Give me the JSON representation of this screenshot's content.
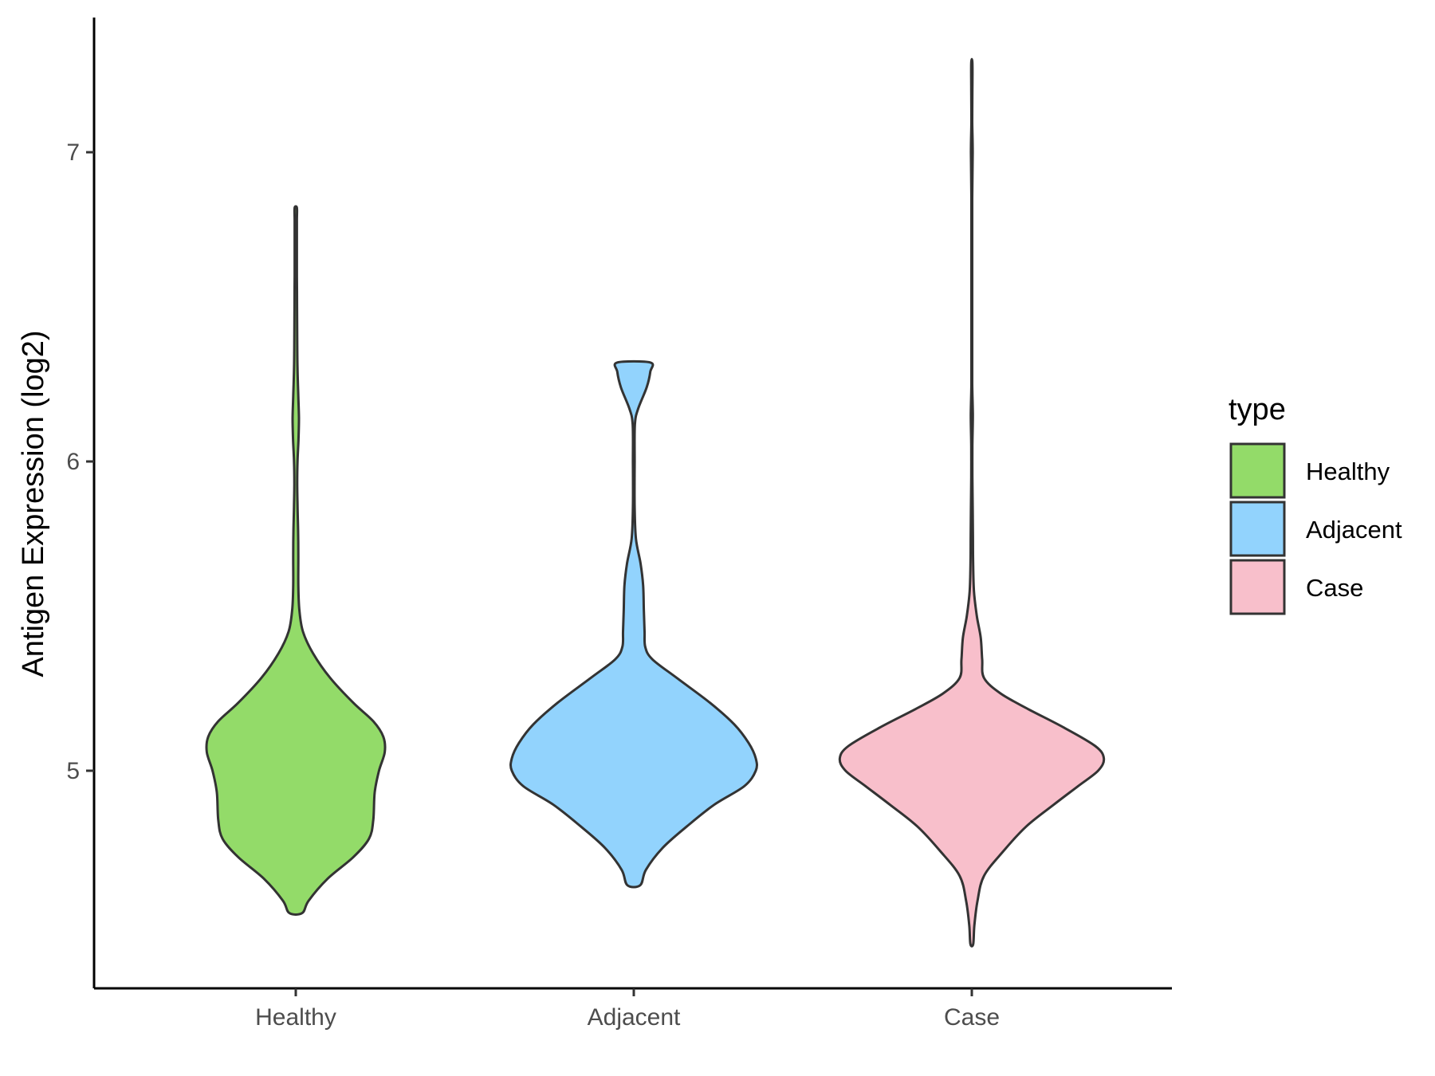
{
  "chart_data": {
    "type": "violin",
    "title": "",
    "xlabel": "",
    "ylabel": "Antigen Expression (log2)",
    "categories": [
      "Healthy",
      "Adjacent",
      "Case"
    ],
    "ylim": [
      4.3,
      7.43
    ],
    "yticks": [
      5,
      6,
      7
    ],
    "grid": false,
    "legend": {
      "title": "type",
      "position": "right",
      "entries": [
        "Healthy",
        "Adjacent",
        "Case"
      ]
    },
    "colors": {
      "Healthy": "#93DB69",
      "Adjacent": "#92D3FD",
      "Case": "#F8BFCB",
      "outline": "#333333"
    },
    "series": [
      {
        "name": "Healthy",
        "min": 4.54,
        "max": 6.82,
        "profile": [
          [
            4.54,
            0.045
          ],
          [
            4.58,
            0.09
          ],
          [
            4.65,
            0.22
          ],
          [
            4.72,
            0.4
          ],
          [
            4.78,
            0.51
          ],
          [
            4.84,
            0.54
          ],
          [
            4.93,
            0.55
          ],
          [
            5.0,
            0.58
          ],
          [
            5.06,
            0.62
          ],
          [
            5.11,
            0.61
          ],
          [
            5.16,
            0.54
          ],
          [
            5.22,
            0.4
          ],
          [
            5.3,
            0.24
          ],
          [
            5.38,
            0.12
          ],
          [
            5.45,
            0.05
          ],
          [
            5.52,
            0.025
          ],
          [
            5.6,
            0.018
          ],
          [
            5.7,
            0.018
          ],
          [
            5.78,
            0.016
          ],
          [
            5.86,
            0.012
          ],
          [
            5.93,
            0.01
          ],
          [
            6.0,
            0.012
          ],
          [
            6.07,
            0.019
          ],
          [
            6.14,
            0.022
          ],
          [
            6.21,
            0.018
          ],
          [
            6.3,
            0.012
          ],
          [
            6.4,
            0.01
          ],
          [
            6.5,
            0.009
          ],
          [
            6.6,
            0.008
          ],
          [
            6.7,
            0.008
          ],
          [
            6.78,
            0.008
          ],
          [
            6.82,
            0.008
          ]
        ]
      },
      {
        "name": "Adjacent",
        "min": 4.63,
        "max": 6.32,
        "profile": [
          [
            4.63,
            0.045
          ],
          [
            4.68,
            0.085
          ],
          [
            4.75,
            0.2
          ],
          [
            4.82,
            0.37
          ],
          [
            4.89,
            0.56
          ],
          [
            4.95,
            0.77
          ],
          [
            5.0,
            0.85
          ],
          [
            5.04,
            0.85
          ],
          [
            5.09,
            0.8
          ],
          [
            5.15,
            0.7
          ],
          [
            5.22,
            0.53
          ],
          [
            5.3,
            0.3
          ],
          [
            5.36,
            0.13
          ],
          [
            5.4,
            0.08
          ],
          [
            5.45,
            0.075
          ],
          [
            5.52,
            0.07
          ],
          [
            5.6,
            0.065
          ],
          [
            5.67,
            0.047
          ],
          [
            5.75,
            0.015
          ],
          [
            5.85,
            0.006
          ],
          [
            6.0,
            0.006
          ],
          [
            6.12,
            0.008
          ],
          [
            6.17,
            0.03
          ],
          [
            6.24,
            0.09
          ],
          [
            6.29,
            0.115
          ],
          [
            6.32,
            0.115
          ]
        ]
      },
      {
        "name": "Case",
        "min": 4.44,
        "max": 7.29,
        "profile": [
          [
            4.44,
            0.01
          ],
          [
            4.5,
            0.018
          ],
          [
            4.58,
            0.04
          ],
          [
            4.66,
            0.085
          ],
          [
            4.74,
            0.22
          ],
          [
            4.82,
            0.38
          ],
          [
            4.89,
            0.57
          ],
          [
            4.95,
            0.74
          ],
          [
            5.0,
            0.88
          ],
          [
            5.04,
            0.92
          ],
          [
            5.08,
            0.86
          ],
          [
            5.14,
            0.64
          ],
          [
            5.2,
            0.39
          ],
          [
            5.25,
            0.2
          ],
          [
            5.3,
            0.085
          ],
          [
            5.36,
            0.072
          ],
          [
            5.43,
            0.062
          ],
          [
            5.5,
            0.035
          ],
          [
            5.58,
            0.015
          ],
          [
            5.68,
            0.009
          ],
          [
            5.76,
            0.008
          ],
          [
            5.85,
            0.006
          ],
          [
            5.95,
            0.004
          ],
          [
            6.05,
            0.004
          ],
          [
            6.15,
            0.007
          ],
          [
            6.25,
            0.003
          ],
          [
            6.4,
            0.003
          ],
          [
            6.6,
            0.003
          ],
          [
            6.85,
            0.003
          ],
          [
            7.0,
            0.006
          ],
          [
            7.1,
            0.003
          ],
          [
            7.2,
            0.004
          ],
          [
            7.29,
            0.004
          ]
        ]
      }
    ]
  }
}
